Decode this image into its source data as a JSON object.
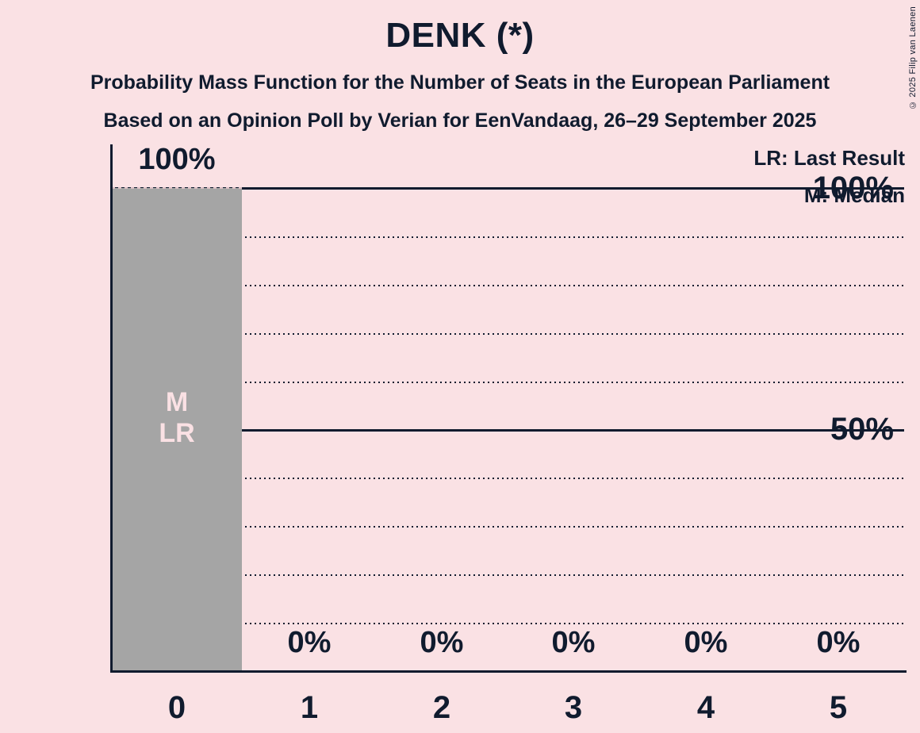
{
  "title": "DENK (*)",
  "subtitles": [
    "Probability Mass Function for the Number of Seats in the European Parliament",
    "Based on an Opinion Poll by Verian for EenVandaag, 26–29 September 2025"
  ],
  "copyright": "© 2025 Filip van Laenen",
  "legend": {
    "last_result": "LR: Last Result",
    "median": "M: Median"
  },
  "colors": {
    "background": "#fae1e4",
    "bar": "#a5a5a5",
    "ink": "#101b2e",
    "bar_marker_text": "#fae1e4"
  },
  "y_axis": {
    "tick_labels": [
      "100%",
      "50%"
    ]
  },
  "bar_annotations": {
    "median": "M",
    "last_result": "LR",
    "annotated_seat": 0
  },
  "chart_data": {
    "type": "bar",
    "title": "DENK (*)",
    "categories": [
      0,
      1,
      2,
      3,
      4,
      5
    ],
    "values": [
      100,
      0,
      0,
      0,
      0,
      0
    ],
    "value_labels": [
      "100%",
      "0%",
      "0%",
      "0%",
      "0%",
      "0%"
    ],
    "xlabel": "",
    "ylabel": "",
    "ylim": [
      0,
      100
    ],
    "y_ticks_labeled": [
      100,
      50
    ],
    "gridlines": {
      "solid_at": [
        100,
        50
      ],
      "dotted_at": [
        90,
        80,
        70,
        60,
        40,
        30,
        20,
        10
      ]
    },
    "legend_position": "top-right",
    "grid": true
  }
}
